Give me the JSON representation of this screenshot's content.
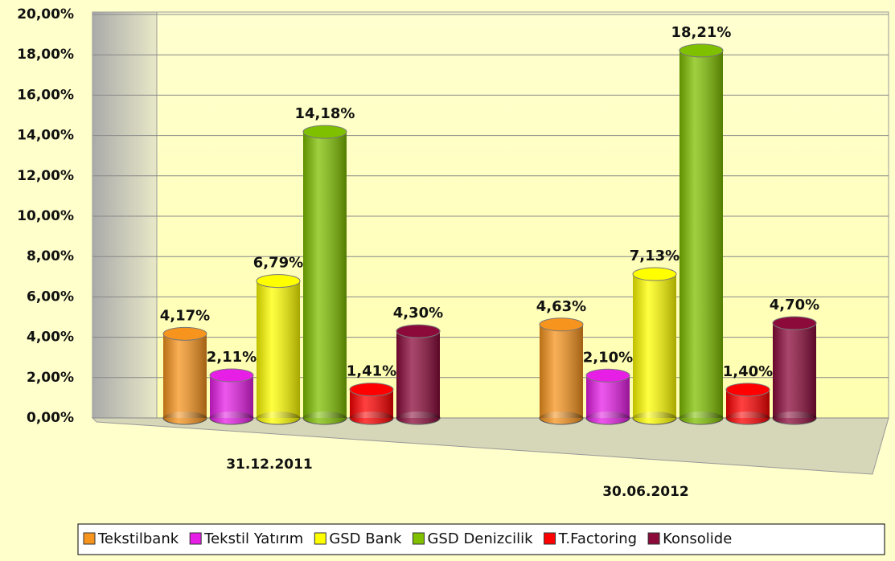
{
  "chart_data": {
    "type": "bar",
    "categories": [
      "31.12.2011",
      "30.06.2012"
    ],
    "series": [
      {
        "name": "Tekstilbank",
        "color": "#f7941d",
        "values": [
          4.17,
          4.63
        ],
        "value_labels": [
          "4,17%",
          "4,63%"
        ]
      },
      {
        "name": "Tekstil Yatırım",
        "color": "#e61ee6",
        "values": [
          2.11,
          2.1
        ],
        "value_labels": [
          "2,11%",
          "2,10%"
        ]
      },
      {
        "name": "GSD Bank",
        "color": "#ffff00",
        "values": [
          6.79,
          7.13
        ],
        "value_labels": [
          "6,79%",
          "7,13%"
        ]
      },
      {
        "name": "GSD Denizcilik",
        "color": "#7fc000",
        "values": [
          14.18,
          18.21
        ],
        "value_labels": [
          "14,18%",
          "18,21%"
        ]
      },
      {
        "name": "T.Factoring",
        "color": "#ff0000",
        "values": [
          1.41,
          1.4
        ],
        "value_labels": [
          "1,41%",
          "1,40%"
        ]
      },
      {
        "name": "Konsolide",
        "color": "#8b0a3a",
        "values": [
          4.3,
          4.7
        ],
        "value_labels": [
          "4,30%",
          "4,70%"
        ]
      }
    ],
    "ylim": [
      0,
      20
    ],
    "yticks": [
      {
        "value": 0,
        "label": "0,00%"
      },
      {
        "value": 2,
        "label": "2,00%"
      },
      {
        "value": 4,
        "label": "4,00%"
      },
      {
        "value": 6,
        "label": "6,00%"
      },
      {
        "value": 8,
        "label": "8,00%"
      },
      {
        "value": 10,
        "label": "10,00%"
      },
      {
        "value": 12,
        "label": "12,00%"
      },
      {
        "value": 14,
        "label": "14,00%"
      },
      {
        "value": 16,
        "label": "16,00%"
      },
      {
        "value": 18,
        "label": "18,00%"
      },
      {
        "value": 20,
        "label": "20,00%"
      }
    ],
    "grid": true,
    "legend": "bottom"
  }
}
